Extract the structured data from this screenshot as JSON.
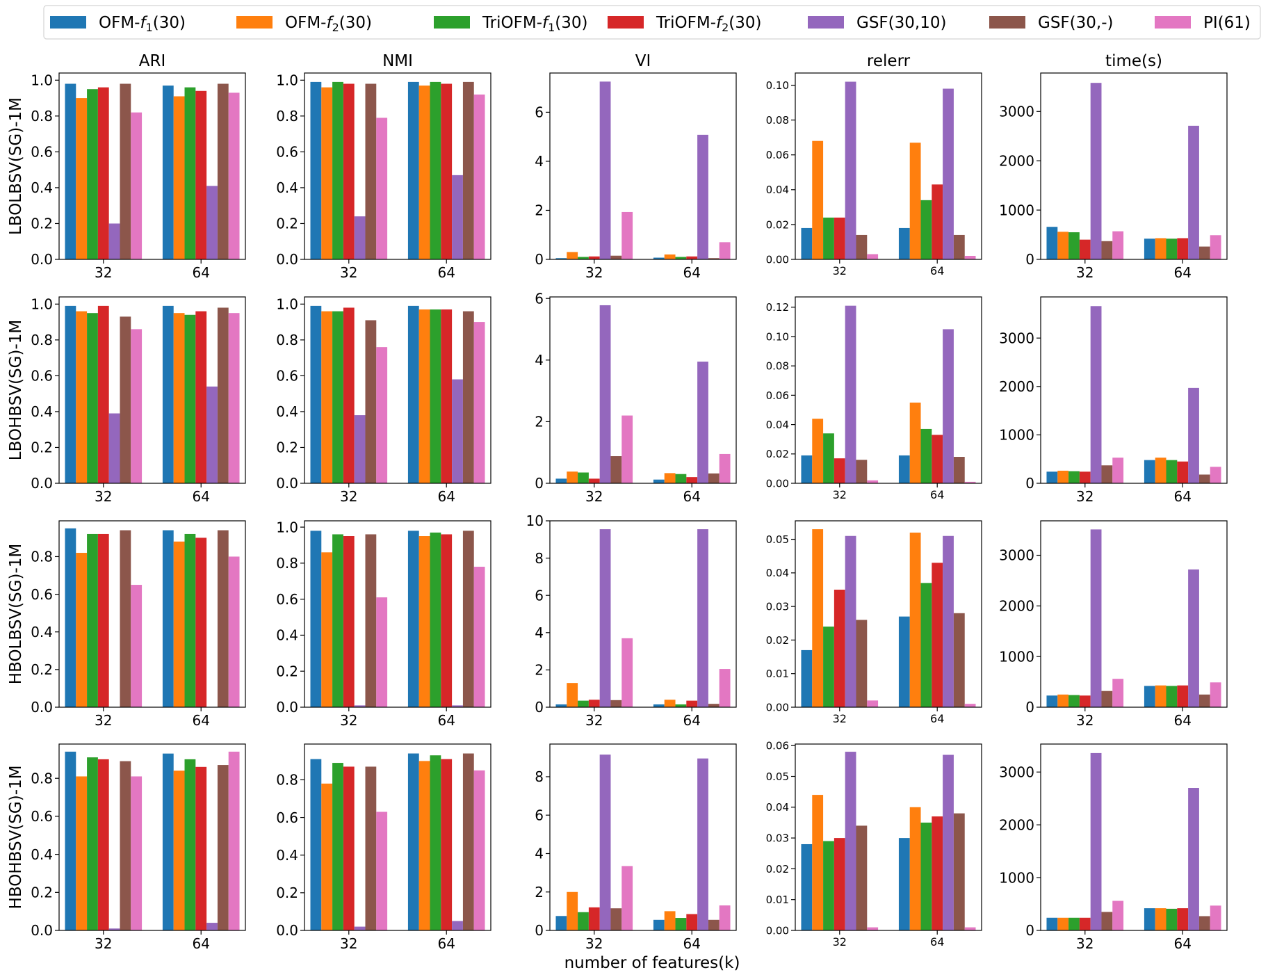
{
  "series": [
    {
      "key": "ofm1",
      "name": "OFM-",
      "sub": "1",
      "suffix": "(30)",
      "italic": "f",
      "color": "#1f77b4"
    },
    {
      "key": "ofm2",
      "name": "OFM-",
      "sub": "2",
      "suffix": "(30)",
      "italic": "f",
      "color": "#ff7f0e"
    },
    {
      "key": "tri1",
      "name": "TriOFM-",
      "sub": "1",
      "suffix": "(30)",
      "italic": "f",
      "color": "#2ca02c"
    },
    {
      "key": "tri2",
      "name": "TriOFM-",
      "sub": "2",
      "suffix": "(30)",
      "italic": "f",
      "color": "#d62728"
    },
    {
      "key": "gsf10",
      "name": "GSF(30,10)",
      "sub": "",
      "suffix": "",
      "italic": "",
      "color": "#9467bd"
    },
    {
      "key": "gsfd",
      "name": "GSF(30,-)",
      "sub": "",
      "suffix": "",
      "italic": "",
      "color": "#8c564b"
    },
    {
      "key": "pi",
      "name": "PI(61)",
      "sub": "",
      "suffix": "",
      "italic": "",
      "color": "#e377c2"
    }
  ],
  "column_titles": [
    "ARI",
    "NMI",
    "VI",
    "relerr",
    "time(s)"
  ],
  "row_labels": [
    "LBOLBSV(SG)-1M",
    "LBOHBSV(SG)-1M",
    "HBOLBSV(SG)-1M",
    "HBOHBSV(SG)-1M"
  ],
  "xlabel": "number of features(k)",
  "chart_data": {
    "type": "bar",
    "categories": [
      "32",
      "64"
    ],
    "axes": [
      {
        "ylim": [
          0,
          1.04
        ],
        "yticks": [
          "0.0",
          "0.2",
          "0.4",
          "0.6",
          "0.8",
          "1.0"
        ]
      },
      {
        "ylim": [
          0,
          1.04
        ],
        "yticks": [
          "0.0",
          "0.2",
          "0.4",
          "0.6",
          "0.8",
          "1.0"
        ]
      },
      {
        "ylim": [
          0,
          7.6
        ],
        "yticks": [
          "0",
          "2",
          "4",
          "6"
        ]
      },
      {
        "ylim": [
          0,
          0.107
        ],
        "yticks": [
          "0.00",
          "0.02",
          "0.04",
          "0.06",
          "0.08",
          "0.10"
        ]
      },
      {
        "ylim": [
          0,
          3780
        ],
        "yticks": [
          "0",
          "1000",
          "2000",
          "3000"
        ]
      },
      {
        "ylim": [
          0,
          1.04
        ],
        "yticks": [
          "0.0",
          "0.2",
          "0.4",
          "0.6",
          "0.8",
          "1.0"
        ]
      },
      {
        "ylim": [
          0,
          1.04
        ],
        "yticks": [
          "0.0",
          "0.2",
          "0.4",
          "0.6",
          "0.8",
          "1.0"
        ]
      },
      {
        "ylim": [
          0,
          6.05
        ],
        "yticks": [
          "0",
          "2",
          "4",
          "6"
        ]
      },
      {
        "ylim": [
          0,
          0.127
        ],
        "yticks": [
          "0.00",
          "0.02",
          "0.04",
          "0.06",
          "0.08",
          "0.10",
          "0.12"
        ]
      },
      {
        "ylim": [
          0,
          3850
        ],
        "yticks": [
          "0",
          "1000",
          "2000",
          "3000"
        ]
      },
      {
        "ylim": [
          0,
          0.99
        ],
        "yticks": [
          "0.0",
          "0.2",
          "0.4",
          "0.6",
          "0.8"
        ]
      },
      {
        "ylim": [
          0,
          1.035
        ],
        "yticks": [
          "0.0",
          "0.2",
          "0.4",
          "0.6",
          "0.8",
          "1.0"
        ]
      },
      {
        "ylim": [
          0,
          10.0
        ],
        "yticks": [
          "0",
          "2",
          "4",
          "6",
          "8",
          "10"
        ]
      },
      {
        "ylim": [
          0,
          0.0555
        ],
        "yticks": [
          "0.00",
          "0.01",
          "0.02",
          "0.03",
          "0.04",
          "0.05"
        ]
      },
      {
        "ylim": [
          0,
          3680
        ],
        "yticks": [
          "0",
          "1000",
          "2000",
          "3000"
        ]
      },
      {
        "ylim": [
          0,
          0.98
        ],
        "yticks": [
          "0.0",
          "0.2",
          "0.4",
          "0.6",
          "0.8"
        ]
      },
      {
        "ylim": [
          0,
          0.99
        ],
        "yticks": [
          "0.0",
          "0.2",
          "0.4",
          "0.6",
          "0.8"
        ]
      },
      {
        "ylim": [
          0,
          9.7
        ],
        "yticks": [
          "0",
          "2",
          "4",
          "6",
          "8"
        ]
      },
      {
        "ylim": [
          0,
          0.0605
        ],
        "yticks": [
          "0.00",
          "0.01",
          "0.02",
          "0.03",
          "0.04",
          "0.05",
          "0.06"
        ]
      },
      {
        "ylim": [
          0,
          3530
        ],
        "yticks": [
          "0",
          "1000",
          "2000",
          "3000"
        ]
      }
    ],
    "values": [
      [
        [
          0.98,
          0.97
        ],
        [
          0.9,
          0.91
        ],
        [
          0.95,
          0.96
        ],
        [
          0.96,
          0.94
        ],
        [
          0.2,
          0.41
        ],
        [
          0.98,
          0.98
        ],
        [
          0.82,
          0.93
        ]
      ],
      [
        [
          0.99,
          0.99
        ],
        [
          0.96,
          0.97
        ],
        [
          0.99,
          0.99
        ],
        [
          0.98,
          0.98
        ],
        [
          0.24,
          0.47
        ],
        [
          0.98,
          0.99
        ],
        [
          0.79,
          0.92
        ]
      ],
      [
        [
          0.05,
          0.07
        ],
        [
          0.3,
          0.2
        ],
        [
          0.1,
          0.1
        ],
        [
          0.12,
          0.12
        ],
        [
          7.25,
          5.08
        ],
        [
          0.15,
          0.05
        ],
        [
          1.93,
          0.7
        ]
      ],
      [
        [
          0.018,
          0.018
        ],
        [
          0.068,
          0.067
        ],
        [
          0.024,
          0.034
        ],
        [
          0.024,
          0.043
        ],
        [
          0.102,
          0.098
        ],
        [
          0.014,
          0.014
        ],
        [
          0.003,
          0.002
        ]
      ],
      [
        [
          660,
          420
        ],
        [
          560,
          430
        ],
        [
          550,
          420
        ],
        [
          400,
          430
        ],
        [
          3580,
          2710
        ],
        [
          370,
          260
        ],
        [
          570,
          490
        ]
      ],
      [
        [
          0.99,
          0.99
        ],
        [
          0.96,
          0.95
        ],
        [
          0.95,
          0.94
        ],
        [
          0.99,
          0.96
        ],
        [
          0.39,
          0.54
        ],
        [
          0.93,
          0.98
        ],
        [
          0.86,
          0.95
        ]
      ],
      [
        [
          0.99,
          0.99
        ],
        [
          0.96,
          0.97
        ],
        [
          0.96,
          0.97
        ],
        [
          0.98,
          0.97
        ],
        [
          0.38,
          0.58
        ],
        [
          0.91,
          0.96
        ],
        [
          0.76,
          0.9
        ]
      ],
      [
        [
          0.15,
          0.12
        ],
        [
          0.38,
          0.33
        ],
        [
          0.35,
          0.3
        ],
        [
          0.15,
          0.2
        ],
        [
          5.78,
          3.95
        ],
        [
          0.88,
          0.32
        ],
        [
          2.2,
          0.95
        ]
      ],
      [
        [
          0.019,
          0.019
        ],
        [
          0.044,
          0.055
        ],
        [
          0.034,
          0.037
        ],
        [
          0.017,
          0.033
        ],
        [
          0.121,
          0.105
        ],
        [
          0.016,
          0.018
        ],
        [
          0.002,
          0.001
        ]
      ],
      [
        [
          240,
          480
        ],
        [
          260,
          530
        ],
        [
          250,
          480
        ],
        [
          240,
          450
        ],
        [
          3660,
          1970
        ],
        [
          370,
          180
        ],
        [
          530,
          340
        ]
      ],
      [
        [
          0.95,
          0.94
        ],
        [
          0.82,
          0.88
        ],
        [
          0.92,
          0.92
        ],
        [
          0.92,
          0.9
        ],
        [
          0.0,
          0.0
        ],
        [
          0.94,
          0.94
        ],
        [
          0.65,
          0.8
        ]
      ],
      [
        [
          0.98,
          0.98
        ],
        [
          0.86,
          0.95
        ],
        [
          0.96,
          0.97
        ],
        [
          0.95,
          0.96
        ],
        [
          0.01,
          0.01
        ],
        [
          0.96,
          0.98
        ],
        [
          0.61,
          0.78
        ]
      ],
      [
        [
          0.15,
          0.15
        ],
        [
          1.3,
          0.4
        ],
        [
          0.35,
          0.15
        ],
        [
          0.4,
          0.35
        ],
        [
          9.55,
          9.55
        ],
        [
          0.38,
          0.18
        ],
        [
          3.7,
          2.05
        ]
      ],
      [
        [
          0.017,
          0.027
        ],
        [
          0.053,
          0.052
        ],
        [
          0.024,
          0.037
        ],
        [
          0.035,
          0.043
        ],
        [
          0.051,
          0.051
        ],
        [
          0.026,
          0.028
        ],
        [
          0.002,
          0.001
        ]
      ],
      [
        [
          230,
          420
        ],
        [
          250,
          430
        ],
        [
          240,
          420
        ],
        [
          230,
          430
        ],
        [
          3510,
          2720
        ],
        [
          320,
          250
        ],
        [
          560,
          490
        ]
      ],
      [
        [
          0.94,
          0.93
        ],
        [
          0.81,
          0.84
        ],
        [
          0.91,
          0.9
        ],
        [
          0.9,
          0.86
        ],
        [
          0.01,
          0.04
        ],
        [
          0.89,
          0.87
        ],
        [
          0.81,
          0.94
        ]
      ],
      [
        [
          0.91,
          0.94
        ],
        [
          0.78,
          0.9
        ],
        [
          0.89,
          0.93
        ],
        [
          0.87,
          0.91
        ],
        [
          0.02,
          0.05
        ],
        [
          0.87,
          0.94
        ],
        [
          0.63,
          0.85
        ]
      ],
      [
        [
          0.75,
          0.55
        ],
        [
          2.0,
          1.0
        ],
        [
          0.95,
          0.65
        ],
        [
          1.2,
          0.85
        ],
        [
          9.15,
          8.95
        ],
        [
          1.15,
          0.55
        ],
        [
          3.35,
          1.3
        ]
      ],
      [
        [
          0.028,
          0.03
        ],
        [
          0.044,
          0.04
        ],
        [
          0.029,
          0.035
        ],
        [
          0.03,
          0.037
        ],
        [
          0.058,
          0.057
        ],
        [
          0.034,
          0.038
        ],
        [
          0.001,
          0.001
        ]
      ],
      [
        [
          240,
          420
        ],
        [
          240,
          420
        ],
        [
          240,
          410
        ],
        [
          240,
          420
        ],
        [
          3360,
          2700
        ],
        [
          350,
          270
        ],
        [
          560,
          470
        ]
      ]
    ]
  }
}
